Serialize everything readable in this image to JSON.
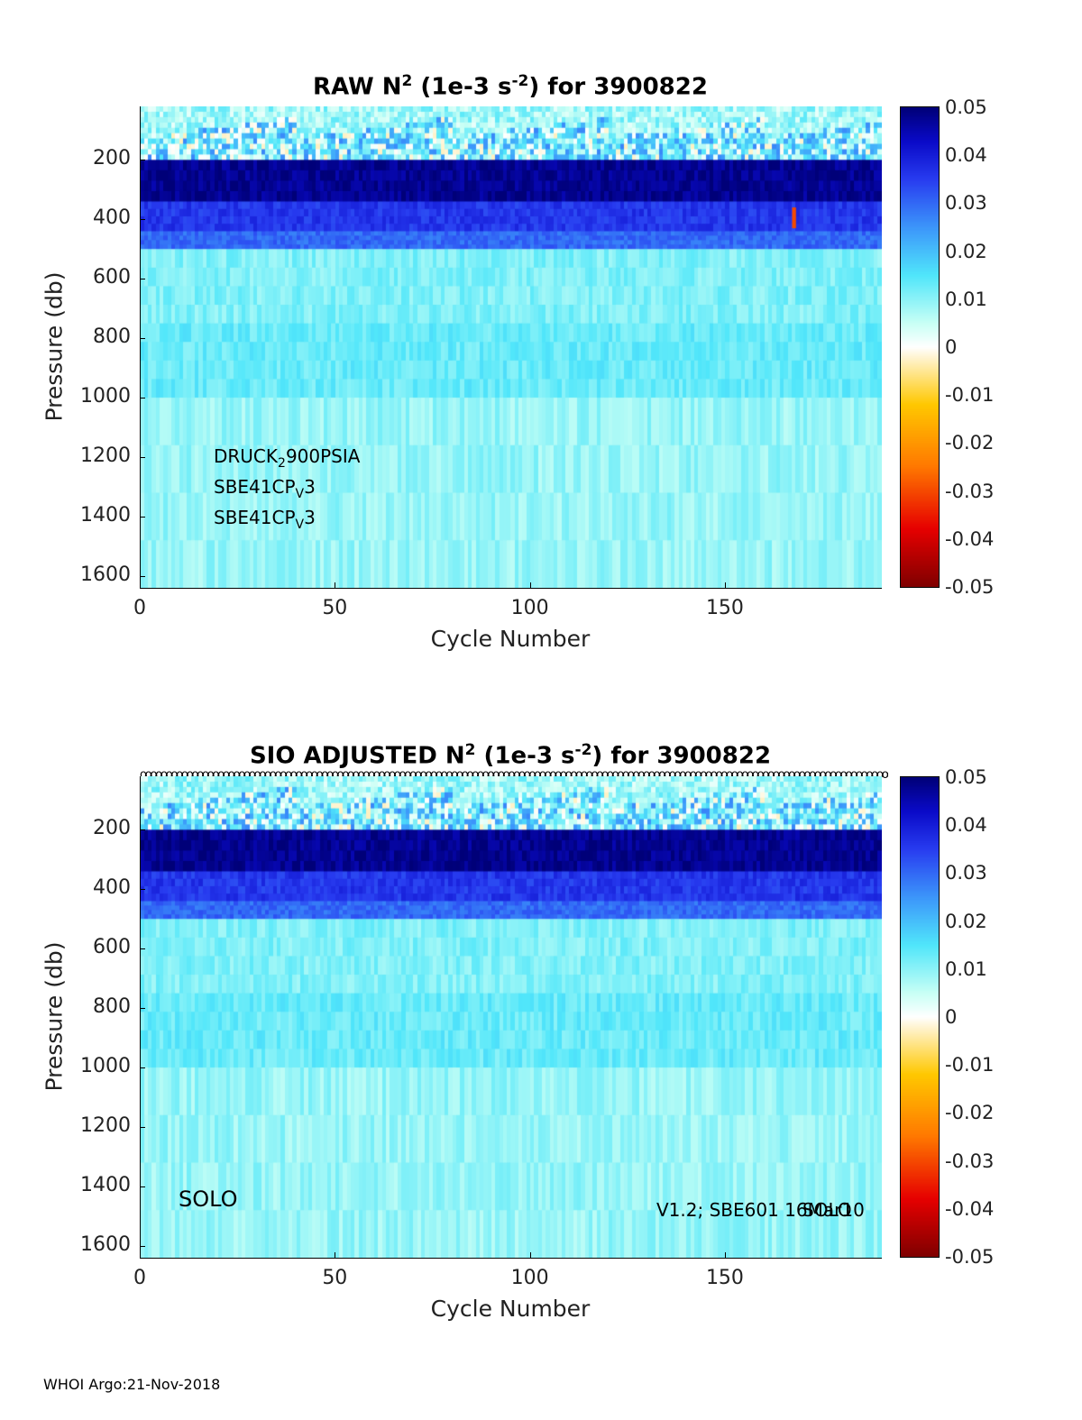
{
  "footer": "WHOI Argo:21-Nov-2018",
  "colorbar": {
    "ticks": [
      "0.05",
      "0.04",
      "0.03",
      "0.02",
      "0.01",
      "0",
      "-0.01",
      "-0.02",
      "-0.03",
      "-0.04",
      "-0.05"
    ],
    "range": [
      -0.05,
      0.05
    ]
  },
  "chart_data": [
    {
      "type": "heatmap",
      "title_main": "RAW N",
      "title_sup": "2",
      "title_mid": " (1e-3 s",
      "title_sup2": "-2",
      "title_end": ") for 3900822",
      "xlabel": "Cycle Number",
      "ylabel": "Pressure (db)",
      "xlim": [
        0,
        190
      ],
      "ylim": [
        1640,
        20
      ],
      "x_ticks": [
        "0",
        "50",
        "100",
        "150"
      ],
      "y_ticks": [
        "200",
        "400",
        "600",
        "800",
        "1000",
        "1200",
        "1400",
        "1600"
      ],
      "annotations": [
        {
          "pre": "DRUCK",
          "sub": "2",
          "post": "900PSIA"
        },
        {
          "pre": "SBE41CP",
          "sub": "V",
          "post": "3"
        },
        {
          "pre": "SBE41CP",
          "sub": "V",
          "post": "3"
        }
      ],
      "layers_pressure_db": [
        20,
        200,
        340,
        440,
        500,
        750,
        1000,
        1640
      ],
      "layer_values": [
        0.012,
        0.048,
        0.036,
        0.03,
        0.011,
        0.013,
        0.009
      ]
    },
    {
      "type": "heatmap",
      "title_main": "SIO  ADJUSTED N",
      "title_sup": "2",
      "title_mid": " (1e-3 s",
      "title_sup2": "-2",
      "title_end": ") for 3900822",
      "xlabel": "Cycle Number",
      "ylabel": "Pressure (db)",
      "xlim": [
        0,
        190
      ],
      "ylim": [
        1640,
        20
      ],
      "x_ticks": [
        "0",
        "50",
        "100",
        "150"
      ],
      "y_ticks": [
        "200",
        "400",
        "600",
        "800",
        "1000",
        "1200",
        "1400",
        "1600"
      ],
      "solo_label": "SOLO",
      "version_label": "V1.2; SBE601 16Mar10",
      "version_overlap": "SOLO",
      "cycle_markers": "oooooooooooooooooooooooooooooooooooooooooooooooooooooooooooooooooooooooooooooooooooooooooooooooooooooooooooooooooooooooooooooooooooooooooooooooooooooooooooooooooooooooooooooooooooooooooo",
      "layers_pressure_db": [
        20,
        200,
        340,
        440,
        500,
        750,
        1000,
        1640
      ],
      "layer_values": [
        0.012,
        0.048,
        0.036,
        0.03,
        0.011,
        0.013,
        0.009
      ]
    }
  ]
}
